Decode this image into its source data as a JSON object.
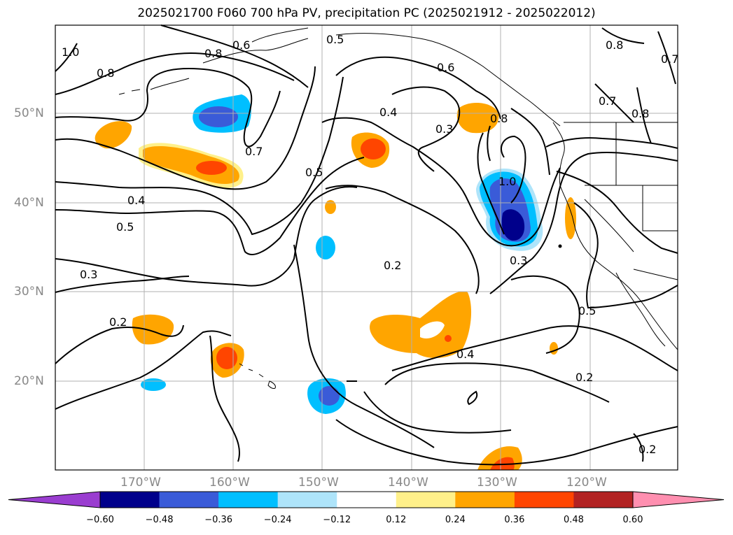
{
  "title": "2025021700 F060 700 hPa PV, precipitation PC (2025021912 - 2025022012)",
  "map": {
    "lat_labels": [
      "50°N",
      "40°N",
      "30°N",
      "20°N"
    ],
    "lon_labels": [
      "170°W",
      "160°W",
      "150°W",
      "140°W",
      "130°W",
      "120°W"
    ],
    "contour_labels": [
      "1.0",
      "0.8",
      "0.8",
      "0.6",
      "0.5",
      "0.6",
      "0.4",
      "0.3",
      "0.8",
      "0.7",
      "0.8",
      "0.7",
      "0.7",
      "0.4",
      "0.5",
      "0.5",
      "1.0",
      "0.3",
      "0.3",
      "0.2",
      "0.2",
      "0.5",
      "0.4",
      "0.2",
      "0.2",
      "0.8"
    ],
    "colors": {
      "grid": "#b0b0b0",
      "contour": "#000000",
      "coast": "#000000"
    }
  },
  "colorbar": {
    "levels": [
      "−0.60",
      "−0.48",
      "−0.36",
      "−0.24",
      "−0.12",
      "0.12",
      "0.24",
      "0.36",
      "0.48",
      "0.60"
    ],
    "colors": [
      "#9a3dd0",
      "#00008b",
      "#3a5bd8",
      "#00bfff",
      "#aee4fa",
      "#ffffff",
      "#fff08a",
      "#ffa500",
      "#ff4500",
      "#b22222",
      "#ff8fb0"
    ]
  }
}
